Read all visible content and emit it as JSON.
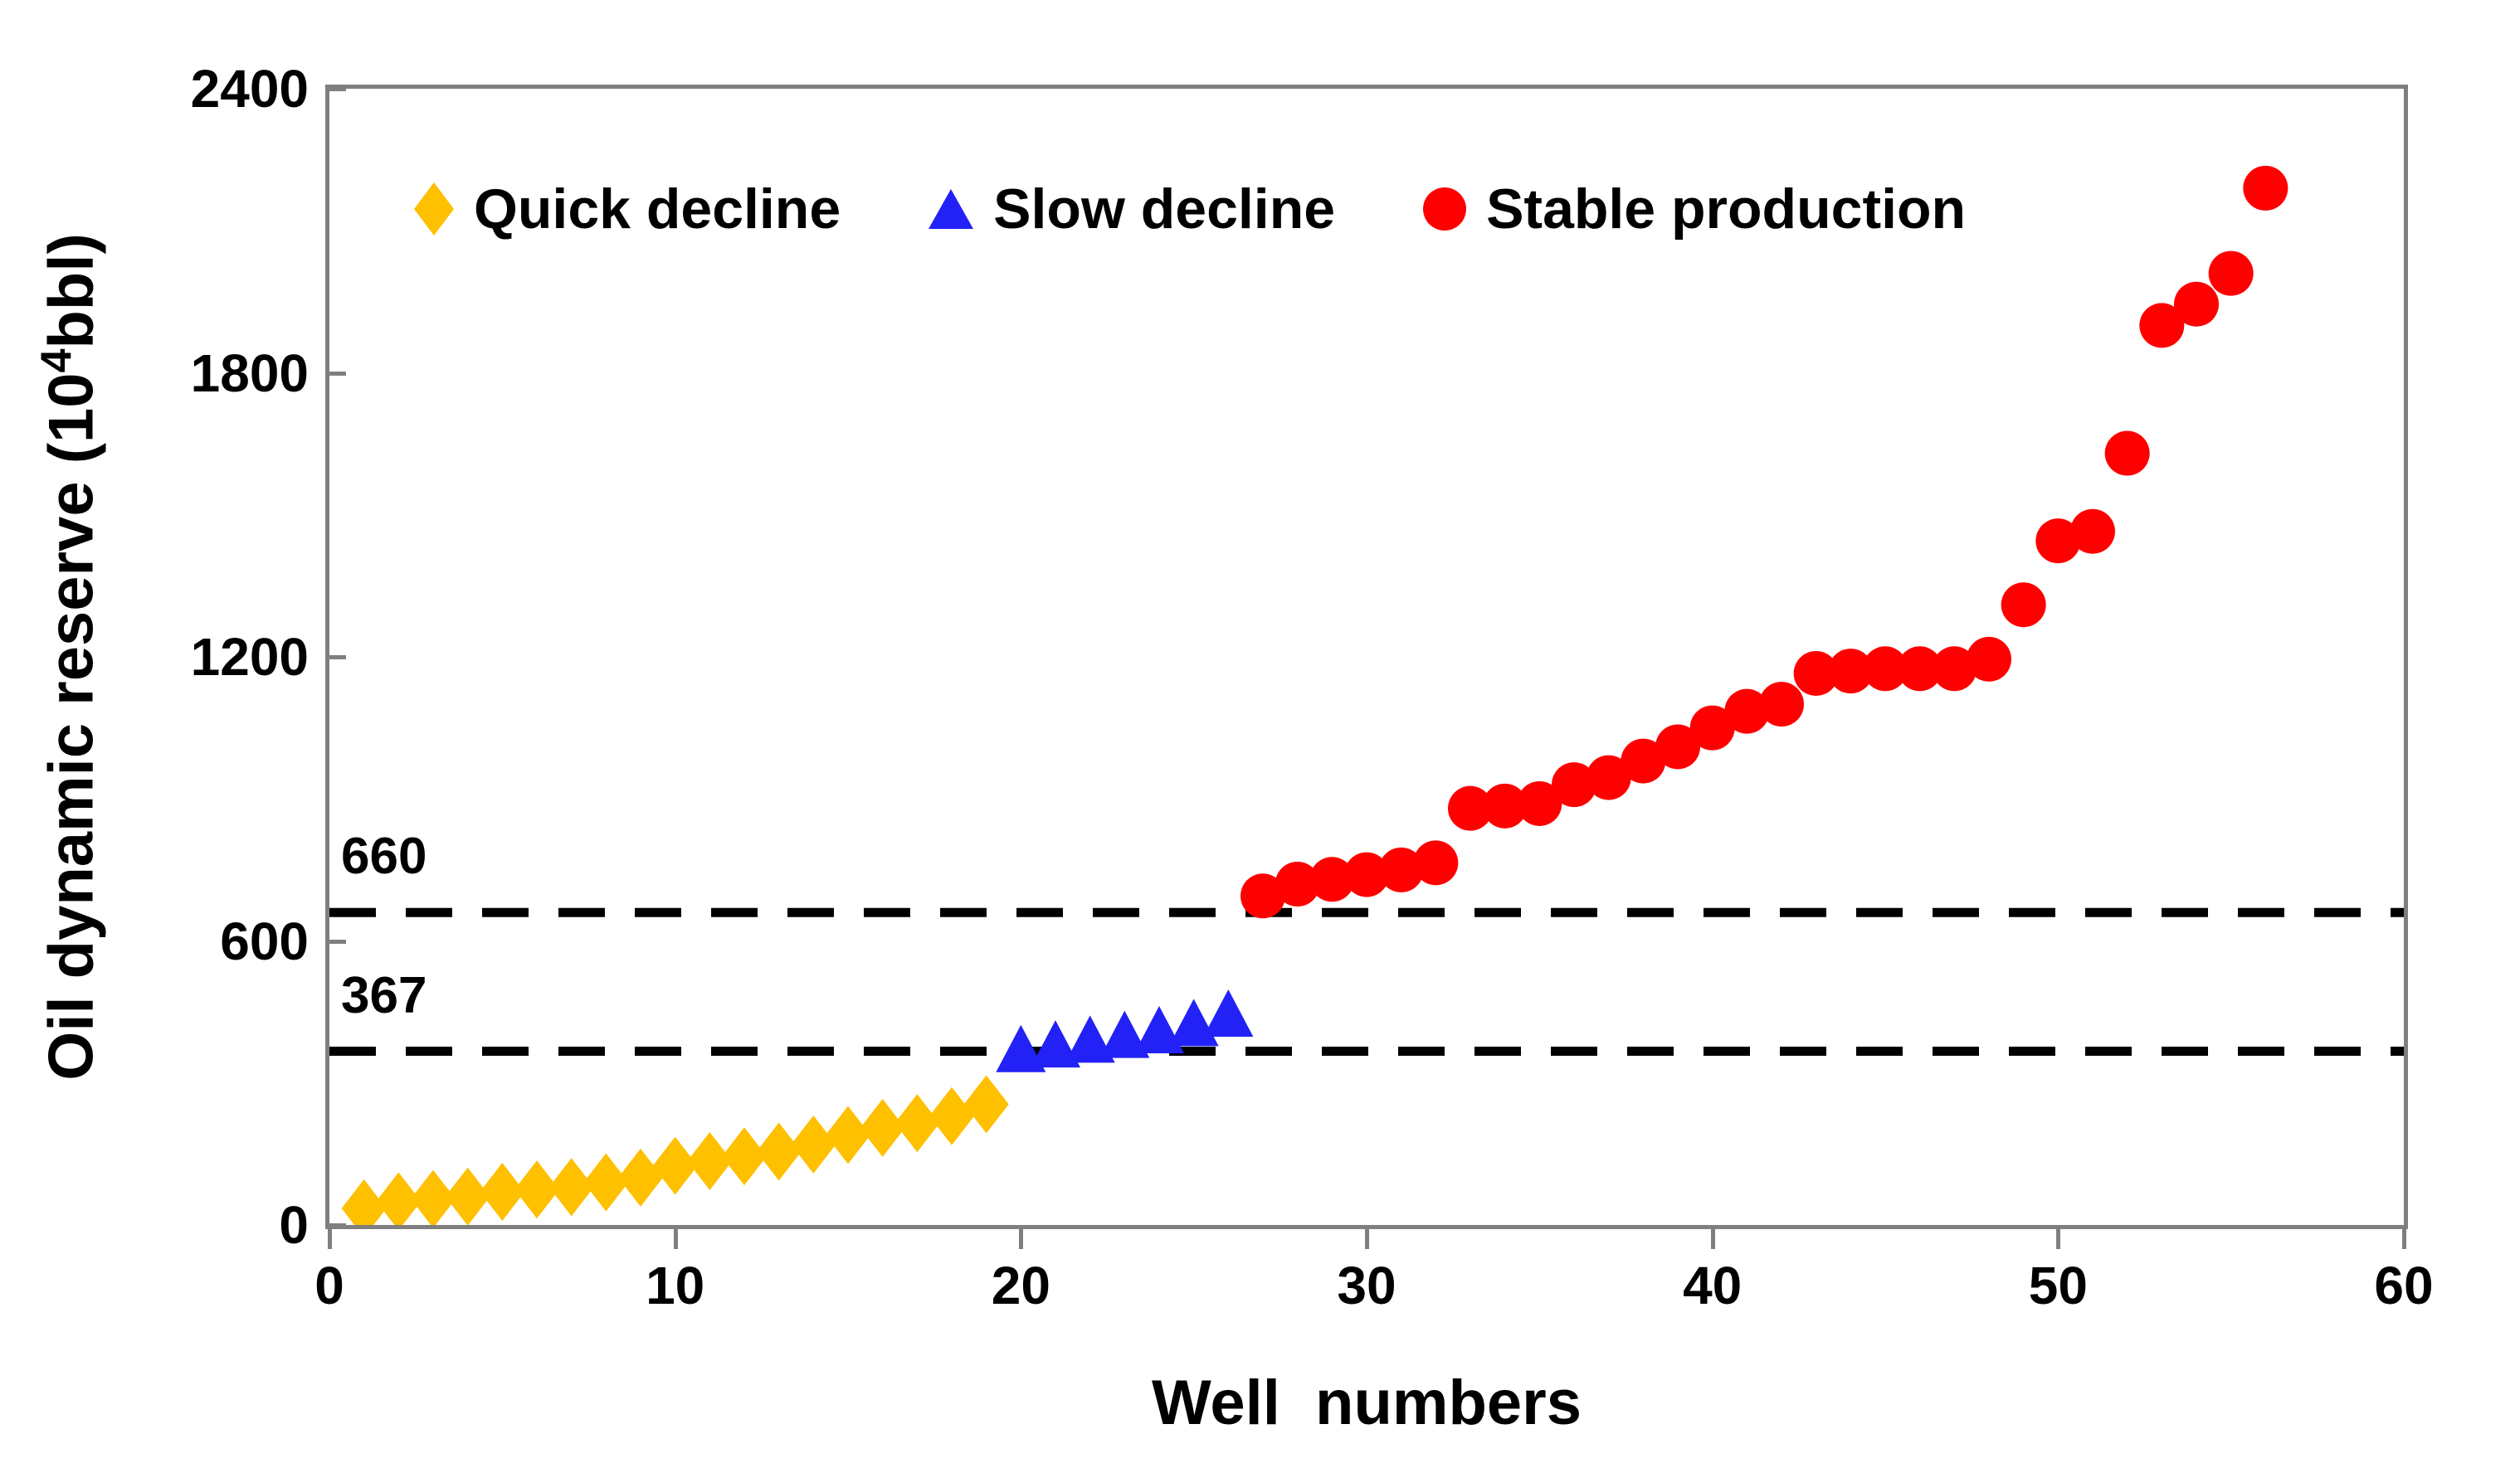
{
  "figure": {
    "background": "#ffffff",
    "axis_color": "#7f7f7f",
    "text_color": "#000000",
    "dashed_line_color": "#000000"
  },
  "chart_data": {
    "type": "scatter",
    "title": "",
    "xlabel": "Well  numbers",
    "ylabel": "Oil dynamic reserve (10⁴bbl)",
    "ylabel_parts": {
      "prefix": "Oil dynamic reserve (10",
      "superscript": "4",
      "suffix": "bbl)"
    },
    "xlim": [
      0,
      60
    ],
    "ylim": [
      0,
      2400
    ],
    "xticks": [
      0,
      10,
      20,
      30,
      40,
      50,
      60
    ],
    "yticks": [
      0,
      600,
      1200,
      1800,
      2400
    ],
    "grid": false,
    "legend_position": "top-inside",
    "thresholds": [
      {
        "label": "660",
        "value": 660
      },
      {
        "label": "367",
        "value": 367
      }
    ],
    "series": [
      {
        "name": "Quick decline",
        "marker": "diamond",
        "color": "#FFC000",
        "x": [
          1,
          2,
          3,
          4,
          5,
          6,
          7,
          8,
          9,
          10,
          11,
          12,
          13,
          14,
          15,
          16,
          17,
          18,
          19
        ],
        "values": [
          35,
          50,
          55,
          60,
          70,
          75,
          80,
          90,
          100,
          125,
          135,
          145,
          155,
          170,
          190,
          205,
          215,
          230,
          255
        ]
      },
      {
        "name": "Slow decline",
        "marker": "triangle",
        "color": "#2222F6",
        "x": [
          20,
          21,
          22,
          23,
          24,
          25,
          26
        ],
        "values": [
          370,
          380,
          390,
          400,
          410,
          425,
          445
        ]
      },
      {
        "name": "Stable production",
        "marker": "circle",
        "color": "#FF0000",
        "x": [
          27,
          28,
          29,
          30,
          31,
          32,
          33,
          34,
          35,
          36,
          37,
          38,
          39,
          40,
          41,
          42,
          43,
          44,
          45,
          46,
          47,
          48,
          49,
          50,
          51,
          52,
          53,
          54,
          55,
          56
        ],
        "values": [
          695,
          720,
          730,
          740,
          750,
          765,
          880,
          885,
          890,
          930,
          945,
          980,
          1010,
          1050,
          1085,
          1100,
          1165,
          1170,
          1175,
          1175,
          1175,
          1195,
          1310,
          1445,
          1465,
          1630,
          1900,
          1945,
          2010,
          2190
        ]
      }
    ]
  }
}
